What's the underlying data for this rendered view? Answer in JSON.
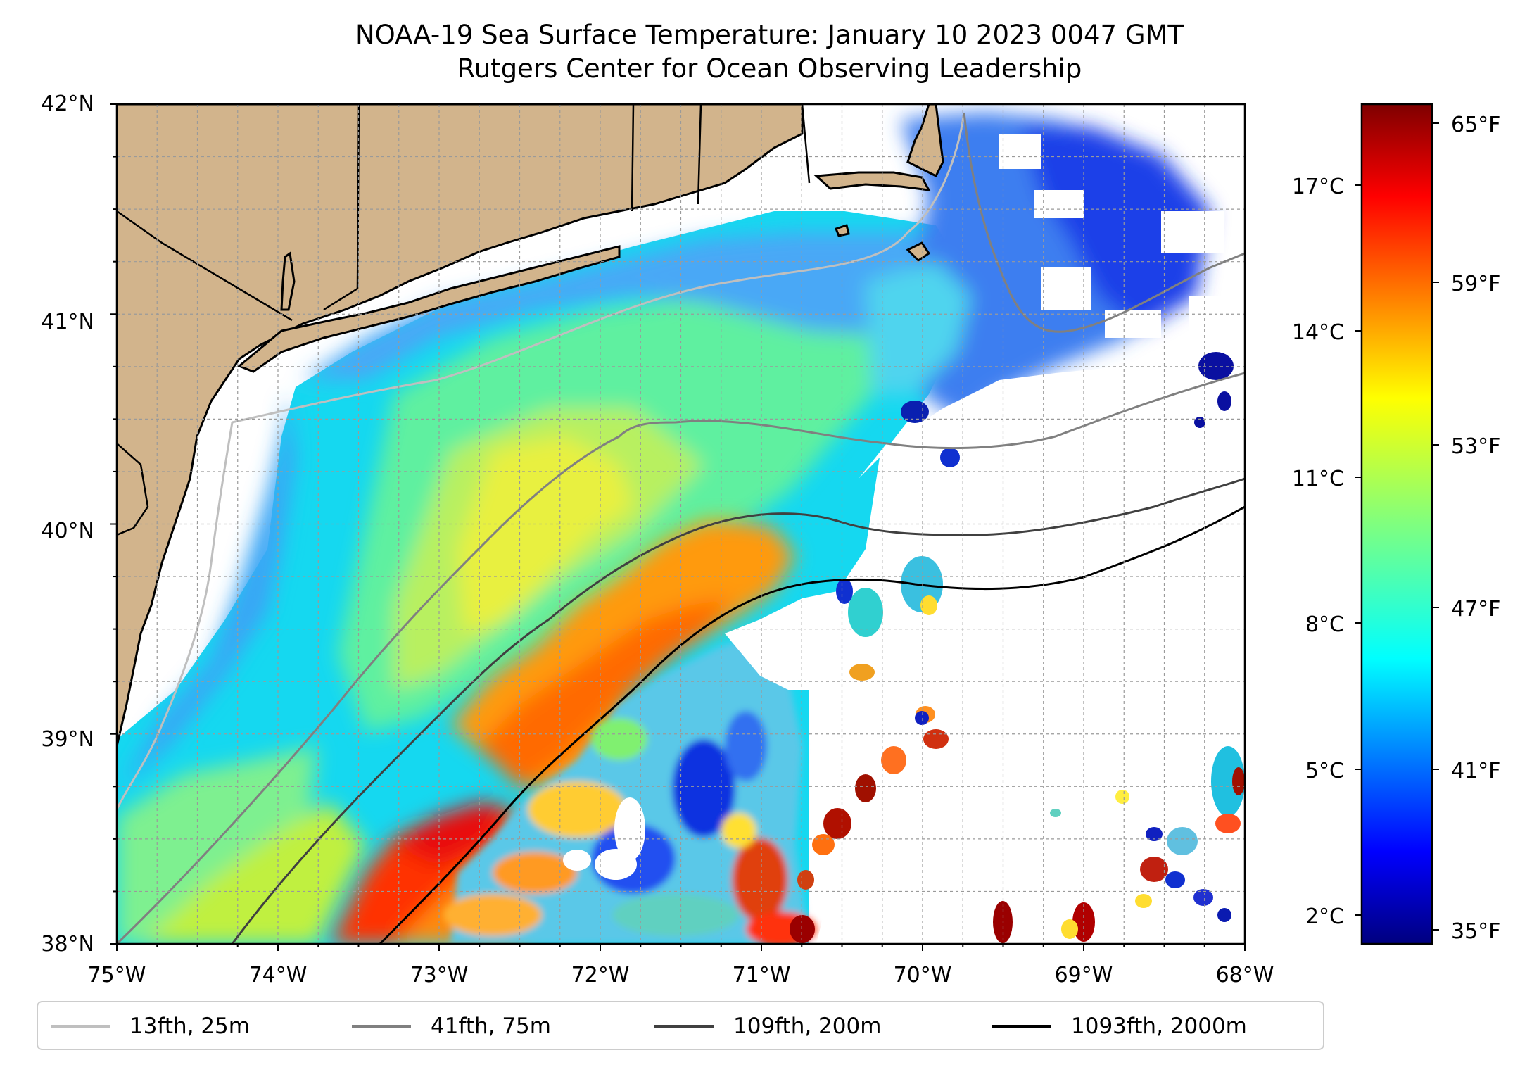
{
  "title": {
    "line1": "NOAA-19 Sea Surface Temperature: January 10 2023 0047 GMT",
    "line2": "Rutgers Center for Ocean Observing Leadership"
  },
  "map": {
    "lon_range": [
      -75,
      -68
    ],
    "lat_range": [
      38,
      42
    ],
    "grid": true,
    "land_color": "#d2b48c",
    "missing_color": "#ffffff",
    "x_ticks": [
      "75°W",
      "74°W",
      "73°W",
      "72°W",
      "71°W",
      "70°W",
      "69°W",
      "68°W"
    ],
    "y_ticks": [
      "42°N",
      "41°N",
      "40°N",
      "39°N",
      "38°N"
    ]
  },
  "colorbar": {
    "colormap": "jet",
    "celsius_ticks": [
      "17°C",
      "14°C",
      "11°C",
      "8°C",
      "5°C",
      "2°C"
    ],
    "fahrenheit_ticks": [
      "65°F",
      "59°F",
      "53°F",
      "47°F",
      "41°F",
      "35°F"
    ],
    "colors": [
      "#00007f",
      "#0000ff",
      "#007fff",
      "#00ffff",
      "#7fff7f",
      "#ffff00",
      "#ff7f00",
      "#ff0000",
      "#7f0000"
    ]
  },
  "legend": {
    "placement": "bottom",
    "items": [
      {
        "label": "13fth, 25m",
        "color": "#bfbfbf"
      },
      {
        "label": "41fth, 75m",
        "color": "#808080"
      },
      {
        "label": "109fth, 200m",
        "color": "#404040"
      },
      {
        "label": "1093fth, 2000m",
        "color": "#000000"
      }
    ]
  }
}
